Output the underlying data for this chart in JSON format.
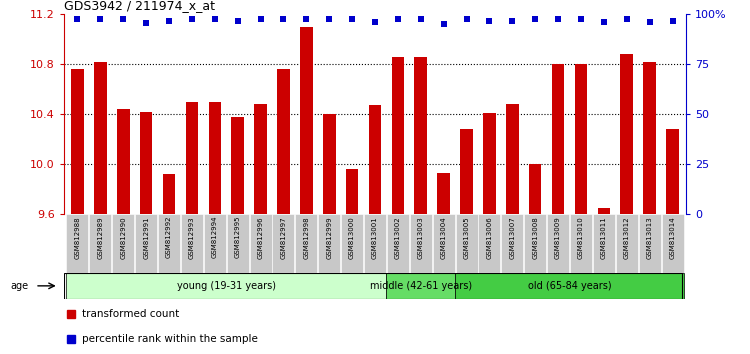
{
  "title": "GDS3942 / 211974_x_at",
  "samples": [
    "GSM812988",
    "GSM812989",
    "GSM812990",
    "GSM812991",
    "GSM812992",
    "GSM812993",
    "GSM812994",
    "GSM812995",
    "GSM812996",
    "GSM812997",
    "GSM812998",
    "GSM812999",
    "GSM813000",
    "GSM813001",
    "GSM813002",
    "GSM813003",
    "GSM813004",
    "GSM813005",
    "GSM813006",
    "GSM813007",
    "GSM813008",
    "GSM813009",
    "GSM813010",
    "GSM813011",
    "GSM813012",
    "GSM813013",
    "GSM813014"
  ],
  "bar_values": [
    10.76,
    10.82,
    10.44,
    10.42,
    9.92,
    10.5,
    10.5,
    10.38,
    10.48,
    10.76,
    11.1,
    10.4,
    9.96,
    10.47,
    10.86,
    10.86,
    9.93,
    10.28,
    10.41,
    10.48,
    10.0,
    10.8,
    10.8,
    9.65,
    10.88,
    10.82,
    10.28
  ],
  "percentile_values": [
    11.165,
    11.165,
    11.165,
    11.13,
    11.145,
    11.165,
    11.165,
    11.145,
    11.165,
    11.165,
    11.165,
    11.165,
    11.165,
    11.14,
    11.165,
    11.165,
    11.12,
    11.165,
    11.145,
    11.145,
    11.165,
    11.165,
    11.165,
    11.135,
    11.165,
    11.135,
    11.145
  ],
  "ylim_left": [
    9.6,
    11.2
  ],
  "ylim_right": [
    0,
    100
  ],
  "bar_color": "#cc0000",
  "percentile_color": "#0000cc",
  "tick_bg_color": "#c8c8c8",
  "groups": [
    {
      "label": "young (19-31 years)",
      "start": 0,
      "end": 14,
      "color": "#ccffcc"
    },
    {
      "label": "middle (42-61 years)",
      "start": 14,
      "end": 17,
      "color": "#66dd66"
    },
    {
      "label": "old (65-84 years)",
      "start": 17,
      "end": 27,
      "color": "#44cc44"
    }
  ],
  "left_yticks": [
    9.6,
    10.0,
    10.4,
    10.8,
    11.2
  ],
  "right_yticks": [
    0,
    25,
    50,
    75,
    100
  ],
  "right_ytick_labels": [
    "0",
    "25",
    "50",
    "75",
    "100%"
  ],
  "dotted_ticks": [
    10.0,
    10.4,
    10.8
  ],
  "legend_items": [
    {
      "label": "transformed count",
      "color": "#cc0000"
    },
    {
      "label": "percentile rank within the sample",
      "color": "#0000cc"
    }
  ],
  "age_label": "age"
}
